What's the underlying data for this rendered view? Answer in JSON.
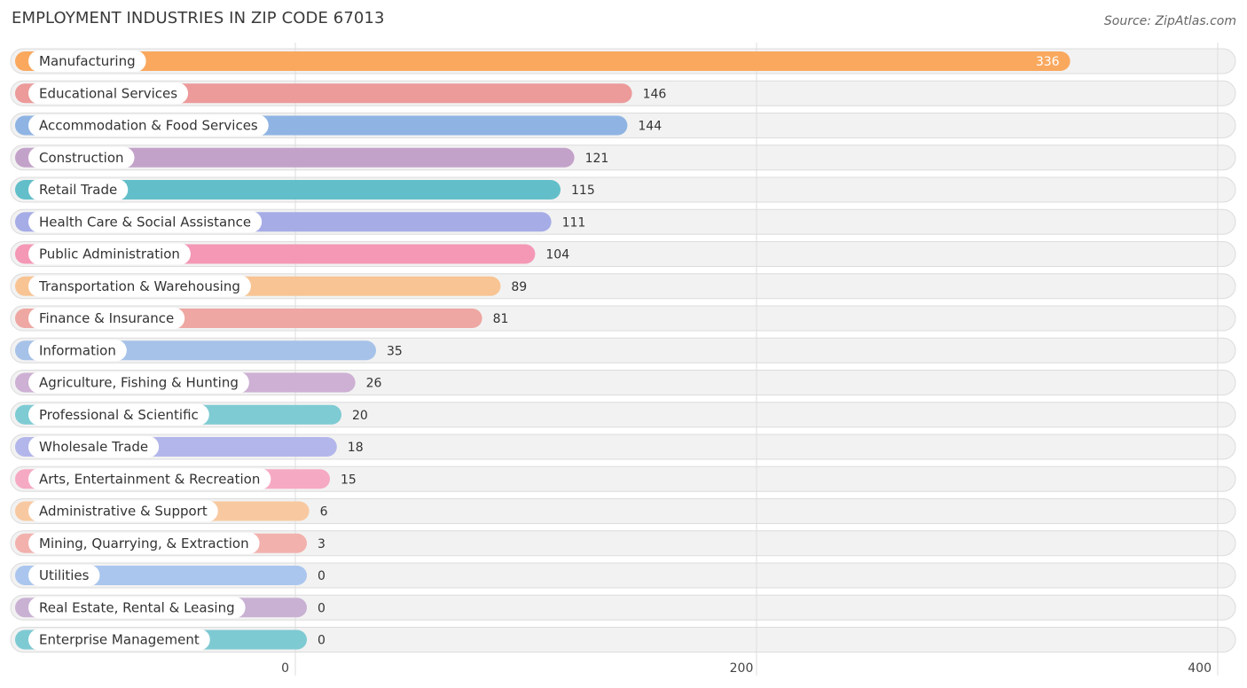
{
  "header": {
    "title": "EMPLOYMENT INDUSTRIES IN ZIP CODE 67013",
    "source": "Source: ZipAtlas.com"
  },
  "chart_data": {
    "type": "bar",
    "orientation": "horizontal",
    "title": "EMPLOYMENT INDUSTRIES IN ZIP CODE 67013",
    "xlim": [
      0,
      400
    ],
    "x_ticks": [
      0,
      200,
      400
    ],
    "grid": true,
    "categories": [
      "Manufacturing",
      "Educational Services",
      "Accommodation & Food Services",
      "Construction",
      "Retail Trade",
      "Health Care & Social Assistance",
      "Public Administration",
      "Transportation & Warehousing",
      "Finance & Insurance",
      "Information",
      "Agriculture, Fishing & Hunting",
      "Professional & Scientific",
      "Wholesale Trade",
      "Arts, Entertainment & Recreation",
      "Administrative & Support",
      "Mining, Quarrying, & Extraction",
      "Utilities",
      "Real Estate, Rental & Leasing",
      "Enterprise Management"
    ],
    "values": [
      336,
      146,
      144,
      121,
      115,
      111,
      104,
      89,
      81,
      35,
      26,
      20,
      18,
      15,
      6,
      3,
      0,
      0,
      0
    ],
    "colors": [
      "#f9a85e",
      "#ec9a9a",
      "#8fb4e3",
      "#c3a2c9",
      "#62bfc9",
      "#a6ace6",
      "#f498b6",
      "#f8c494",
      "#eea7a2",
      "#a6c2e8",
      "#cdb0d3",
      "#7ecbd3",
      "#b2b6ea",
      "#f6a9c3",
      "#f8c9a1",
      "#f2b1ad",
      "#aac6ee",
      "#c9b1d3",
      "#7ecad3"
    ]
  }
}
